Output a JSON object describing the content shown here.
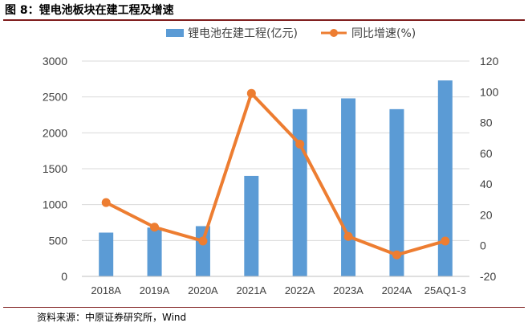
{
  "figure": {
    "title": "图 8：锂电池板块在建工程及增速",
    "source": "资料来源：中原证券研究所，Wind"
  },
  "colors": {
    "bar": "#5b9bd5",
    "line": "#ed7d31",
    "grid": "#d9d9d9",
    "axis": "#bfbfbf",
    "rule": "#7f1d1d"
  },
  "chart_data": {
    "type": "bar",
    "title": "",
    "categories": [
      "2018A",
      "2019A",
      "2020A",
      "2021A",
      "2022A",
      "2023A",
      "2024A",
      "25AQ1-3"
    ],
    "series": [
      {
        "name": "锂电池在建工程(亿元)",
        "type": "bar",
        "axis": "left",
        "values": [
          610,
          680,
          700,
          1400,
          2330,
          2480,
          2330,
          2730
        ]
      },
      {
        "name": "同比增速(%)",
        "type": "line",
        "axis": "right",
        "values": [
          28,
          12,
          3,
          99,
          66,
          6,
          -6,
          3
        ]
      }
    ],
    "ylim_left": [
      0,
      3000
    ],
    "yticks_left": [
      0,
      500,
      1000,
      1500,
      2000,
      2500,
      3000
    ],
    "ylim_right": [
      -20,
      120
    ],
    "yticks_right": [
      -20,
      0,
      20,
      40,
      60,
      80,
      100,
      120
    ],
    "grid": true,
    "legend_position": "top"
  }
}
